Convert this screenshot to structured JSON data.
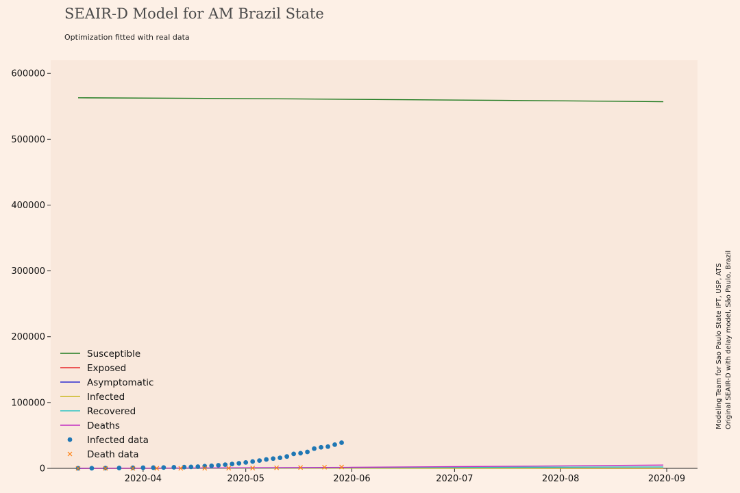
{
  "chart_data": {
    "type": "line",
    "title": "SEAIR-D Model for AM Brazil State",
    "subtitle": "Optimization fitted with real data",
    "side_note_line1": "Modeling Team for Sao Paulo State IPT, USP, ATS",
    "side_note_line2": "Original SEAIR-D with delay model, São Paulo, Brazil",
    "x_type": "date",
    "xlim": [
      "2020-03-05",
      "2020-09-10"
    ],
    "ylim": [
      0,
      620000
    ],
    "y_ticks": [
      0,
      100000,
      200000,
      300000,
      400000,
      500000,
      600000
    ],
    "y_tick_labels": [
      "0",
      "100000",
      "200000",
      "300000",
      "400000",
      "500000",
      "600000"
    ],
    "x_ticks": [
      "2020-04-01",
      "2020-05-01",
      "2020-06-01",
      "2020-07-01",
      "2020-08-01",
      "2020-09-01"
    ],
    "x_tick_labels": [
      "2020-04",
      "2020-05",
      "2020-06",
      "2020-07",
      "2020-08",
      "2020-09"
    ],
    "grid": false,
    "legend_position": "lower-left",
    "colors": {
      "background": "#fdf0e6",
      "plot_background": "#f9e8dc",
      "susceptible": "#1f7a1f",
      "exposed": "#e8252a",
      "asymptomatic": "#2a2ad0",
      "infected": "#c9b71f",
      "recovered": "#2ec4c4",
      "deaths": "#c22ec2",
      "infected_data": "#1f77b4",
      "death_data": "#ff7f0e"
    },
    "series": [
      {
        "name": "Susceptible",
        "kind": "line",
        "color": "#1f7a1f",
        "x": [
          "2020-03-13",
          "2020-04-15",
          "2020-05-15",
          "2020-06-15",
          "2020-07-15",
          "2020-08-15",
          "2020-08-31"
        ],
        "values": [
          563000,
          562200,
          561300,
          560100,
          559000,
          557800,
          557000
        ]
      },
      {
        "name": "Exposed",
        "kind": "line",
        "color": "#e8252a",
        "x": [
          "2020-03-13",
          "2020-05-01",
          "2020-06-01",
          "2020-07-01",
          "2020-08-31"
        ],
        "values": [
          0,
          200,
          300,
          250,
          150
        ]
      },
      {
        "name": "Asymptomatic",
        "kind": "line",
        "color": "#2a2ad0",
        "x": [
          "2020-03-13",
          "2020-05-01",
          "2020-06-01",
          "2020-07-01",
          "2020-08-31"
        ],
        "values": [
          0,
          300,
          500,
          450,
          300
        ]
      },
      {
        "name": "Infected",
        "kind": "line",
        "color": "#c9b71f",
        "x": [
          "2020-03-13",
          "2020-05-01",
          "2020-06-01",
          "2020-07-01",
          "2020-08-31"
        ],
        "values": [
          0,
          100,
          200,
          150,
          100
        ]
      },
      {
        "name": "Recovered",
        "kind": "line",
        "color": "#2ec4c4",
        "x": [
          "2020-03-13",
          "2020-05-01",
          "2020-06-01",
          "2020-07-01",
          "2020-08-31"
        ],
        "values": [
          0,
          400,
          1000,
          1500,
          2200
        ]
      },
      {
        "name": "Deaths",
        "kind": "line",
        "color": "#c22ec2",
        "x": [
          "2020-03-13",
          "2020-05-01",
          "2020-06-01",
          "2020-07-01",
          "2020-08-01",
          "2020-08-31"
        ],
        "values": [
          0,
          800,
          1600,
          2600,
          3700,
          5000
        ]
      },
      {
        "name": "Infected data",
        "kind": "scatter",
        "marker": "circle",
        "color": "#1f77b4",
        "x": [
          "2020-03-13",
          "2020-03-17",
          "2020-03-21",
          "2020-03-25",
          "2020-03-29",
          "2020-04-01",
          "2020-04-04",
          "2020-04-07",
          "2020-04-10",
          "2020-04-13",
          "2020-04-15",
          "2020-04-17",
          "2020-04-19",
          "2020-04-21",
          "2020-04-23",
          "2020-04-25",
          "2020-04-27",
          "2020-04-29",
          "2020-05-01",
          "2020-05-03",
          "2020-05-05",
          "2020-05-07",
          "2020-05-09",
          "2020-05-11",
          "2020-05-13",
          "2020-05-15",
          "2020-05-17",
          "2020-05-19",
          "2020-05-21",
          "2020-05-23",
          "2020-05-25",
          "2020-05-27",
          "2020-05-29"
        ],
        "values": [
          100,
          200,
          400,
          600,
          900,
          1000,
          1100,
          1300,
          1600,
          1900,
          2200,
          2600,
          3300,
          3900,
          4700,
          5600,
          6600,
          7700,
          9000,
          10400,
          11800,
          13500,
          14800,
          16000,
          18000,
          22000,
          23000,
          25000,
          30000,
          32000,
          33000,
          36000,
          39000
        ]
      },
      {
        "name": "Death data",
        "kind": "scatter",
        "marker": "x",
        "color": "#ff7f0e",
        "x": [
          "2020-03-13",
          "2020-03-21",
          "2020-03-29",
          "2020-04-05",
          "2020-04-12",
          "2020-04-19",
          "2020-04-26",
          "2020-05-03",
          "2020-05-10",
          "2020-05-17",
          "2020-05-24",
          "2020-05-29"
        ],
        "values": [
          0,
          0,
          10,
          30,
          80,
          180,
          300,
          500,
          800,
          1200,
          1700,
          2000
        ]
      }
    ]
  }
}
